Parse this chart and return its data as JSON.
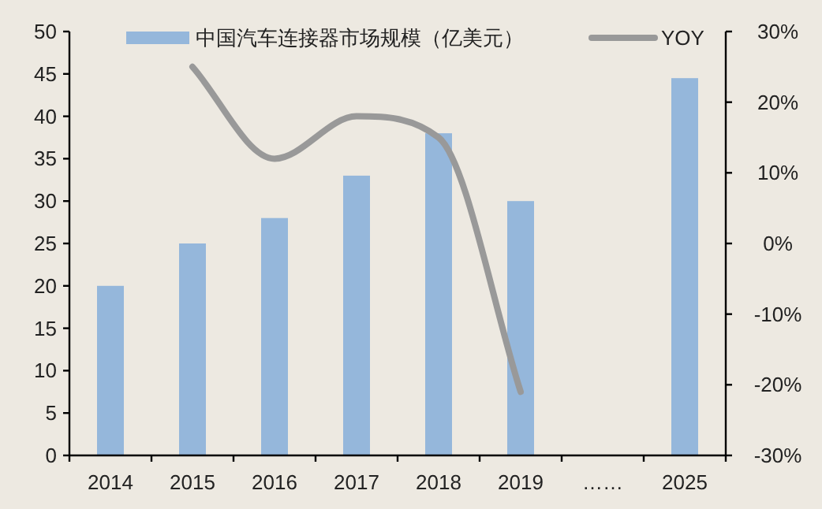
{
  "chart_data": {
    "type": "bar",
    "categories": [
      "2014",
      "2015",
      "2016",
      "2017",
      "2018",
      "2019",
      "……",
      "2025"
    ],
    "series": [
      {
        "name": "中国汽车连接器市场规模（亿美元）",
        "color": "#95b7db",
        "values": [
          20,
          25,
          28,
          33,
          38,
          30,
          null,
          44.5
        ]
      },
      {
        "name": "YOY",
        "type": "line",
        "axis": "y2",
        "color": "#999999",
        "values": [
          null,
          25,
          12,
          18,
          15,
          -21,
          null,
          null
        ]
      }
    ],
    "ylim": [
      0,
      50
    ],
    "yticks": [
      0,
      5,
      10,
      15,
      20,
      25,
      30,
      35,
      40,
      45,
      50
    ],
    "y2lim": [
      -30,
      30
    ],
    "y2ticks": [
      {
        "value": -30,
        "label": "-30%"
      },
      {
        "value": -20,
        "label": "-20%"
      },
      {
        "value": -10,
        "label": "-10%"
      },
      {
        "value": 0,
        "label": "0%"
      },
      {
        "value": 10,
        "label": "10%"
      },
      {
        "value": 20,
        "label": "20%"
      },
      {
        "value": 30,
        "label": "30%"
      }
    ],
    "legend": "top",
    "grid": false
  }
}
